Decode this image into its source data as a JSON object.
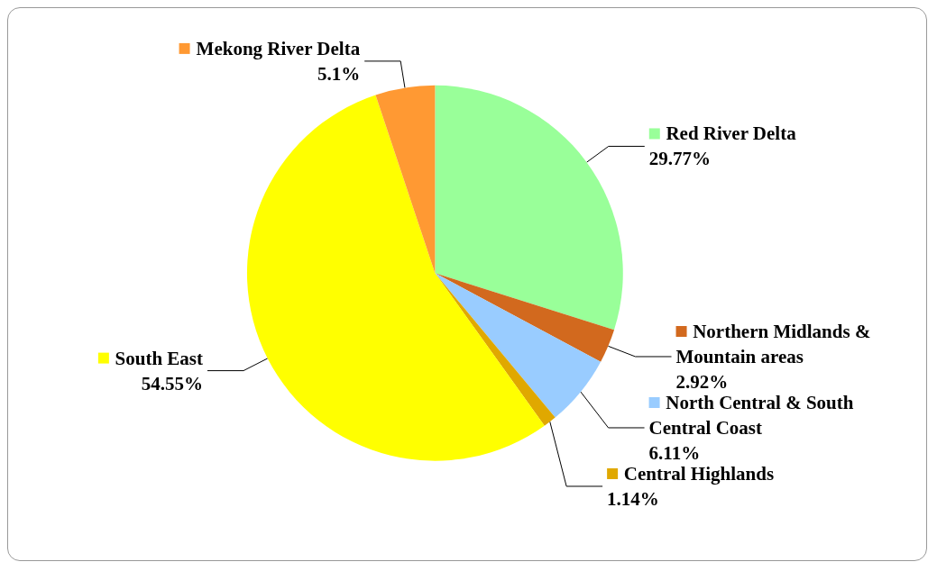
{
  "chart_data": {
    "type": "pie",
    "categories": [
      "Red River Delta",
      "Northern Midlands & Mountain areas",
      "North Central & South Central Coast",
      "Central Highlands",
      "South East",
      "Mekong River Delta"
    ],
    "values": [
      29.77,
      2.92,
      6.11,
      1.14,
      54.55,
      5.1
    ],
    "colors": [
      "#99ff99",
      "#d2691e",
      "#99ccff",
      "#e0a800",
      "#ffff00",
      "#ff9933"
    ],
    "value_labels": [
      "29.77%",
      "2.92%",
      "6.11%",
      "1.14%",
      "54.55%",
      "5.1%"
    ],
    "legend": "right"
  }
}
